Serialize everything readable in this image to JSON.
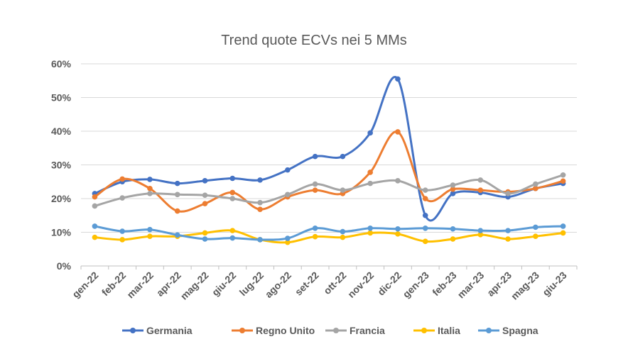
{
  "chart_data": {
    "type": "line",
    "title": "Trend quote ECVs nei 5 MMs",
    "xlabel": "",
    "ylabel": "",
    "ylim": [
      0,
      60
    ],
    "yticks": [
      "0%",
      "10%",
      "20%",
      "30%",
      "40%",
      "50%",
      "60%"
    ],
    "grid": true,
    "smooth": true,
    "legend_position": "bottom",
    "categories": [
      "gen-22",
      "feb-22",
      "mar-22",
      "apr-22",
      "mag-22",
      "giu-22",
      "lug-22",
      "ago-22",
      "set-22",
      "ott-22",
      "nov-22",
      "dic-22",
      "gen-23",
      "feb-23",
      "mar-23",
      "apr-23",
      "mag-23",
      "giu-23"
    ],
    "series": [
      {
        "name": "Germania",
        "color": "#4472c4",
        "values": [
          21.5,
          25,
          25.7,
          24.5,
          25.3,
          26,
          25.5,
          28.5,
          32.5,
          32.5,
          39.5,
          55.5,
          15,
          21.5,
          21.8,
          20.5,
          23,
          24.5
        ]
      },
      {
        "name": "Regno Unito",
        "color": "#ed7d31",
        "values": [
          20.5,
          25.8,
          23,
          16.3,
          18.5,
          21.8,
          16.8,
          20.5,
          22.5,
          21.5,
          27.8,
          39.8,
          20,
          22.8,
          22.5,
          22,
          23,
          25.2
        ]
      },
      {
        "name": "Francia",
        "color": "#a5a5a5",
        "values": [
          17.8,
          20.2,
          21.5,
          21.2,
          21,
          20,
          18.8,
          21.2,
          24.3,
          22.5,
          24.5,
          25.3,
          22.5,
          24,
          25.5,
          21.5,
          24.3,
          27
        ]
      },
      {
        "name": "Italia",
        "color": "#ffc000",
        "values": [
          8.5,
          7.8,
          8.8,
          8.8,
          9.8,
          10.5,
          7.8,
          7,
          8.7,
          8.5,
          9.8,
          9.5,
          7.3,
          8,
          9.3,
          8,
          8.8,
          9.8
        ]
      },
      {
        "name": "Spagna",
        "color": "#5b9bd5",
        "values": [
          11.8,
          10.3,
          10.8,
          9.2,
          8,
          8.3,
          7.8,
          8.2,
          11.2,
          10.2,
          11.2,
          11,
          11.2,
          11,
          10.5,
          10.5,
          11.5,
          11.8
        ]
      }
    ]
  }
}
